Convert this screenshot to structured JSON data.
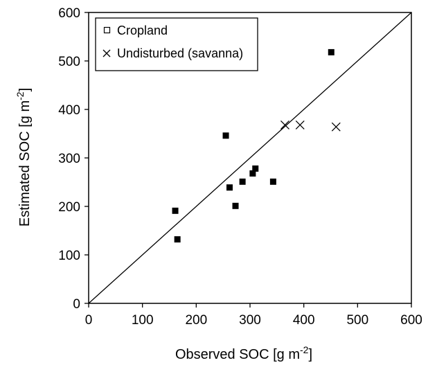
{
  "chart_data": {
    "type": "scatter",
    "xlabel": "Observed SOC [g m",
    "xlabel_sup": "-2",
    "xlabel_end": "]",
    "ylabel": "Estimated SOC [g m",
    "ylabel_sup": "-2",
    "ylabel_end": "]",
    "xlim": [
      0,
      600
    ],
    "ylim": [
      0,
      600
    ],
    "xticks": [
      "0",
      "100",
      "200",
      "300",
      "400",
      "500",
      "600"
    ],
    "yticks": [
      "0",
      "100",
      "200",
      "300",
      "400",
      "500",
      "600"
    ],
    "grid": false,
    "legend_position": "top-left",
    "reference_line": "1:1",
    "series": [
      {
        "name": "Cropland",
        "marker": "filled-square",
        "legend_marker": "open-square",
        "color": "#000000",
        "points": [
          [
            161,
            191
          ],
          [
            165,
            132
          ],
          [
            255,
            346
          ],
          [
            262,
            239
          ],
          [
            273,
            201
          ],
          [
            286,
            251
          ],
          [
            305,
            268
          ],
          [
            310,
            278
          ],
          [
            343,
            251
          ],
          [
            451,
            518
          ]
        ]
      },
      {
        "name": "Undisturbed (savanna)",
        "marker": "cross",
        "legend_marker": "cross",
        "color": "#000000",
        "points": [
          [
            365,
            368
          ],
          [
            393,
            368
          ],
          [
            460,
            364
          ]
        ]
      }
    ]
  }
}
